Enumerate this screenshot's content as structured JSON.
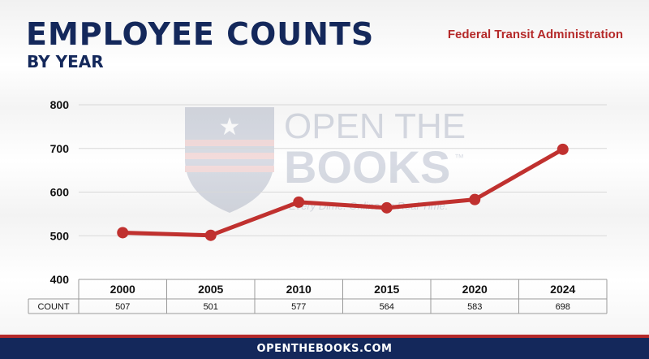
{
  "header": {
    "title": "EMPLOYEE COUNTS",
    "subtitle": "BY YEAR",
    "agency": "Federal Transit Administration"
  },
  "watermark": {
    "line1": "OPEN THE",
    "line2": "BOOKS",
    "trademark": "™",
    "tagline": "Every Dime. Online. In Real Time."
  },
  "footer": {
    "url": "OPENTHEBOOKS.COM"
  },
  "colors": {
    "navy": "#14285b",
    "red": "#b52a2a",
    "line": "#c0312f"
  },
  "chart_data": {
    "type": "line",
    "title": "EMPLOYEE COUNTS",
    "subtitle": "BY YEAR",
    "categories": [
      "2000",
      "2005",
      "2010",
      "2015",
      "2020",
      "2024"
    ],
    "series": [
      {
        "values": [
          507,
          501,
          577,
          564,
          583,
          698
        ]
      }
    ],
    "ylim": [
      400,
      800
    ],
    "yticks": [
      400,
      500,
      600,
      700,
      800
    ],
    "grid": true,
    "table": {
      "row_label": "COUNT",
      "values": [
        "507",
        "501",
        "577",
        "564",
        "583",
        "698"
      ]
    }
  }
}
